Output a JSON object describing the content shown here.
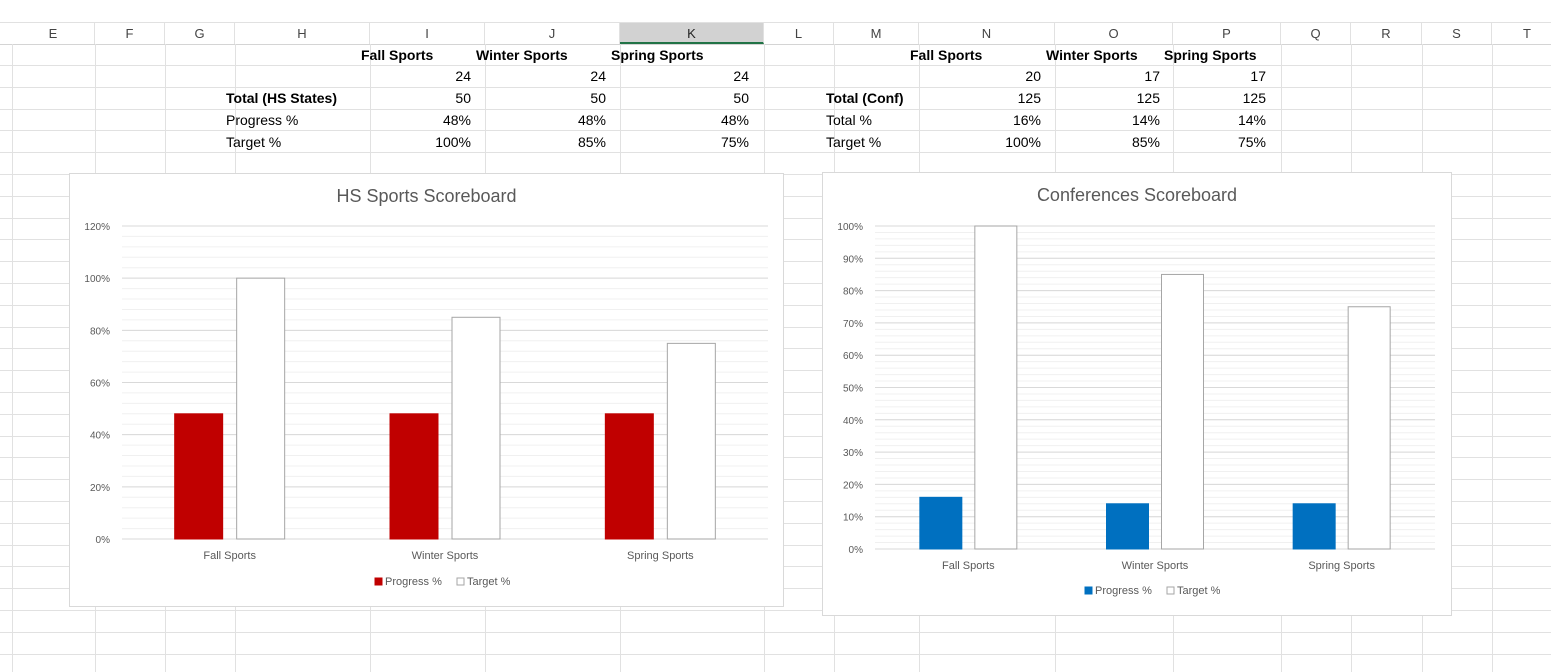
{
  "columns": [
    "E",
    "F",
    "G",
    "H",
    "I",
    "J",
    "K",
    "L",
    "M",
    "N",
    "O",
    "P",
    "Q",
    "R",
    "S",
    "T"
  ],
  "selected_column": "K",
  "table_hs": {
    "headers": [
      "Fall Sports",
      "Winter Sports",
      "Spring Sports"
    ],
    "count_row": [
      "24",
      "24",
      "24"
    ],
    "total_label": "Total (HS States)",
    "total_row": [
      "50",
      "50",
      "50"
    ],
    "progress_label": "Progress %",
    "progress_row": [
      "48%",
      "48%",
      "48%"
    ],
    "target_label": "Target %",
    "target_row": [
      "100%",
      "85%",
      "75%"
    ]
  },
  "table_conf": {
    "headers": [
      "Fall Sports",
      "Winter Sports",
      "Spring Sports"
    ],
    "count_row": [
      "20",
      "17",
      "17"
    ],
    "total_label": "Total (Conf)",
    "total_row": [
      "125",
      "125",
      "125"
    ],
    "pct_label": "Total %",
    "pct_row": [
      "16%",
      "14%",
      "14%"
    ],
    "target_label": "Target %",
    "target_row": [
      "100%",
      "85%",
      "75%"
    ]
  },
  "chart_data": [
    {
      "type": "bar",
      "title": "HS Sports Scoreboard",
      "categories": [
        "Fall Sports",
        "Winter Sports",
        "Spring Sports"
      ],
      "series": [
        {
          "name": "Progress %",
          "values": [
            48,
            48,
            48
          ],
          "fill": "#c00000",
          "stroke": "#c00000"
        },
        {
          "name": "Target %",
          "values": [
            100,
            85,
            75
          ],
          "fill": "#ffffff",
          "stroke": "#a6a6a6"
        }
      ],
      "ylim": [
        0,
        120
      ],
      "yticks": [
        0,
        20,
        40,
        60,
        80,
        100,
        120
      ],
      "ytick_labels": [
        "0%",
        "20%",
        "40%",
        "60%",
        "80%",
        "100%",
        "120%"
      ],
      "legend": "bottom",
      "grid": true
    },
    {
      "type": "bar",
      "title": "Conferences Scoreboard",
      "categories": [
        "Fall Sports",
        "Winter Sports",
        "Spring Sports"
      ],
      "series": [
        {
          "name": "Progress %",
          "values": [
            16,
            14,
            14
          ],
          "fill": "#0070c0",
          "stroke": "#0070c0"
        },
        {
          "name": "Target %",
          "values": [
            100,
            85,
            75
          ],
          "fill": "#ffffff",
          "stroke": "#a6a6a6"
        }
      ],
      "ylim": [
        0,
        100
      ],
      "yticks": [
        0,
        10,
        20,
        30,
        40,
        50,
        60,
        70,
        80,
        90,
        100
      ],
      "ytick_labels": [
        "0%",
        "10%",
        "20%",
        "30%",
        "40%",
        "50%",
        "60%",
        "70%",
        "80%",
        "90%",
        "100%"
      ],
      "legend": "bottom",
      "grid": true
    }
  ]
}
